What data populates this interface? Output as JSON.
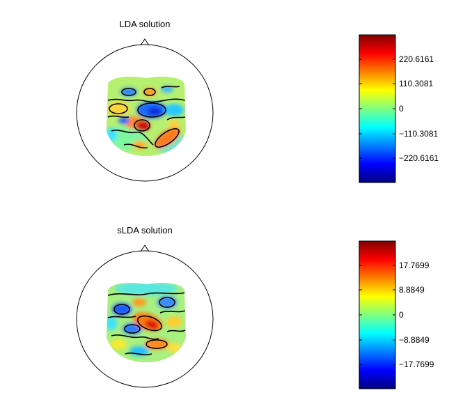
{
  "chart_data": [
    {
      "type": "heatmap",
      "title": "LDA solution",
      "colorbar": {
        "colormap": "jet",
        "ticks": [
          220.6161,
          110.3081,
          0,
          -110.3081,
          -220.6161
        ],
        "tick_labels": [
          "220.6161",
          "110.3081",
          "0",
          "−110.3081",
          "−220.6161"
        ],
        "range": [
          -275.8,
          275.8
        ]
      }
    },
    {
      "type": "heatmap",
      "title": "sLDA solution",
      "colorbar": {
        "colormap": "jet",
        "ticks": [
          17.7699,
          8.8849,
          0,
          -8.8849,
          -17.7699
        ],
        "tick_labels": [
          "17.7699",
          "8.8849",
          "0",
          "−8.8849",
          "−17.7699"
        ],
        "range": [
          -22.2,
          22.2
        ]
      }
    }
  ]
}
